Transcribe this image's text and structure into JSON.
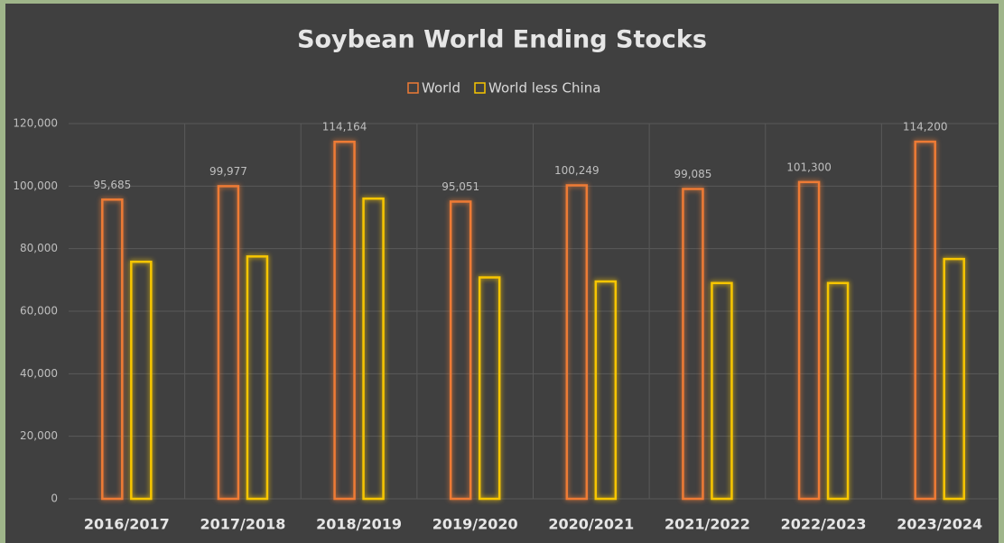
{
  "chart_data": {
    "type": "bar",
    "title": "Soybean World Ending Stocks",
    "categories": [
      "2016/2017",
      "2017/2018",
      "2018/2019",
      "2019/2020",
      "2020/2021",
      "2021/2022",
      "2022/2023",
      "2023/2024"
    ],
    "series": [
      {
        "name": "World",
        "color": "#ee7b35",
        "values": [
          95685,
          99977,
          114164,
          95051,
          100249,
          99085,
          101300,
          114200
        ],
        "value_labels": [
          "95,685",
          "99,977",
          "114,164",
          "95,051",
          "100,249",
          "99,085",
          "101,300",
          "114,200"
        ]
      },
      {
        "name": "World less China",
        "color": "#f7c600",
        "values": [
          75800,
          77500,
          96000,
          70800,
          69500,
          69000,
          69000,
          76700
        ]
      }
    ],
    "ylim": [
      0,
      120000
    ],
    "yticks": [
      0,
      {
        "value": 20000,
        "label": "20,000"
      },
      {
        "value": 40000,
        "label": "40,000"
      },
      {
        "value": 60000,
        "label": "60,000"
      },
      {
        "value": 80000,
        "label": "80,000"
      },
      {
        "value": 100000,
        "label": "100,000"
      },
      {
        "value": 120000,
        "label": "120,000"
      }
    ],
    "grid": true,
    "legend": "top"
  }
}
